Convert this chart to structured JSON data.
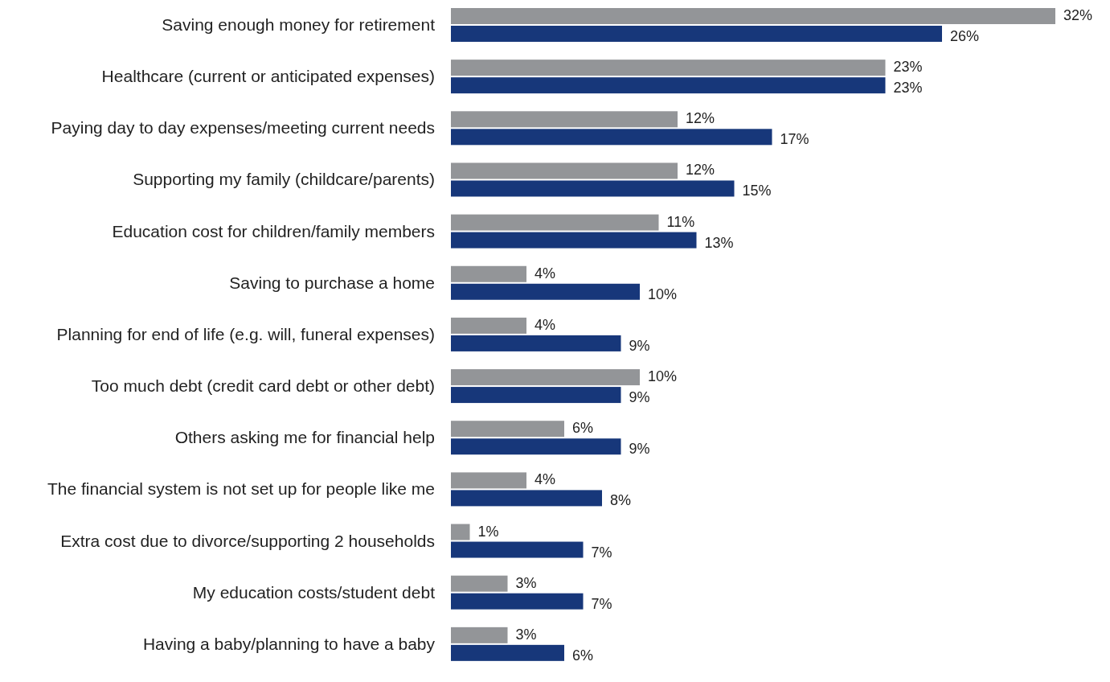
{
  "chart_data": {
    "type": "bar",
    "orientation": "horizontal",
    "categories": [
      "Saving enough money for retirement",
      "Healthcare (current or anticipated expenses)",
      "Paying day to day expenses/meeting current needs",
      "Supporting my family (childcare/parents)",
      "Education cost for children/family members",
      "Saving to purchase a home",
      "Planning for end of life (e.g. will, funeral expenses)",
      "Too much debt (credit card debt or other debt)",
      "Others asking me for financial help",
      "The financial system is not set up for people like me",
      "Extra cost due to divorce/supporting 2 households",
      "My education costs/student debt",
      "Having a baby/planning to have a baby"
    ],
    "series": [
      {
        "color": "#939598",
        "values": [
          32,
          23,
          12,
          12,
          11,
          4,
          4,
          10,
          6,
          4,
          1,
          3,
          3
        ],
        "value_labels": [
          "32%",
          "23%",
          "12%",
          "12%",
          "11%",
          "4%",
          "4%",
          "10%",
          "6%",
          "4%",
          "1%",
          "3%",
          "3%"
        ]
      },
      {
        "color": "#17377a",
        "values": [
          26,
          23,
          17,
          15,
          13,
          10,
          9,
          9,
          9,
          8,
          7,
          7,
          6
        ],
        "value_labels": [
          "26%",
          "23%",
          "17%",
          "15%",
          "13%",
          "10%",
          "9%",
          "9%",
          "9%",
          "8%",
          "7%",
          "7%",
          "6%"
        ]
      }
    ]
  }
}
